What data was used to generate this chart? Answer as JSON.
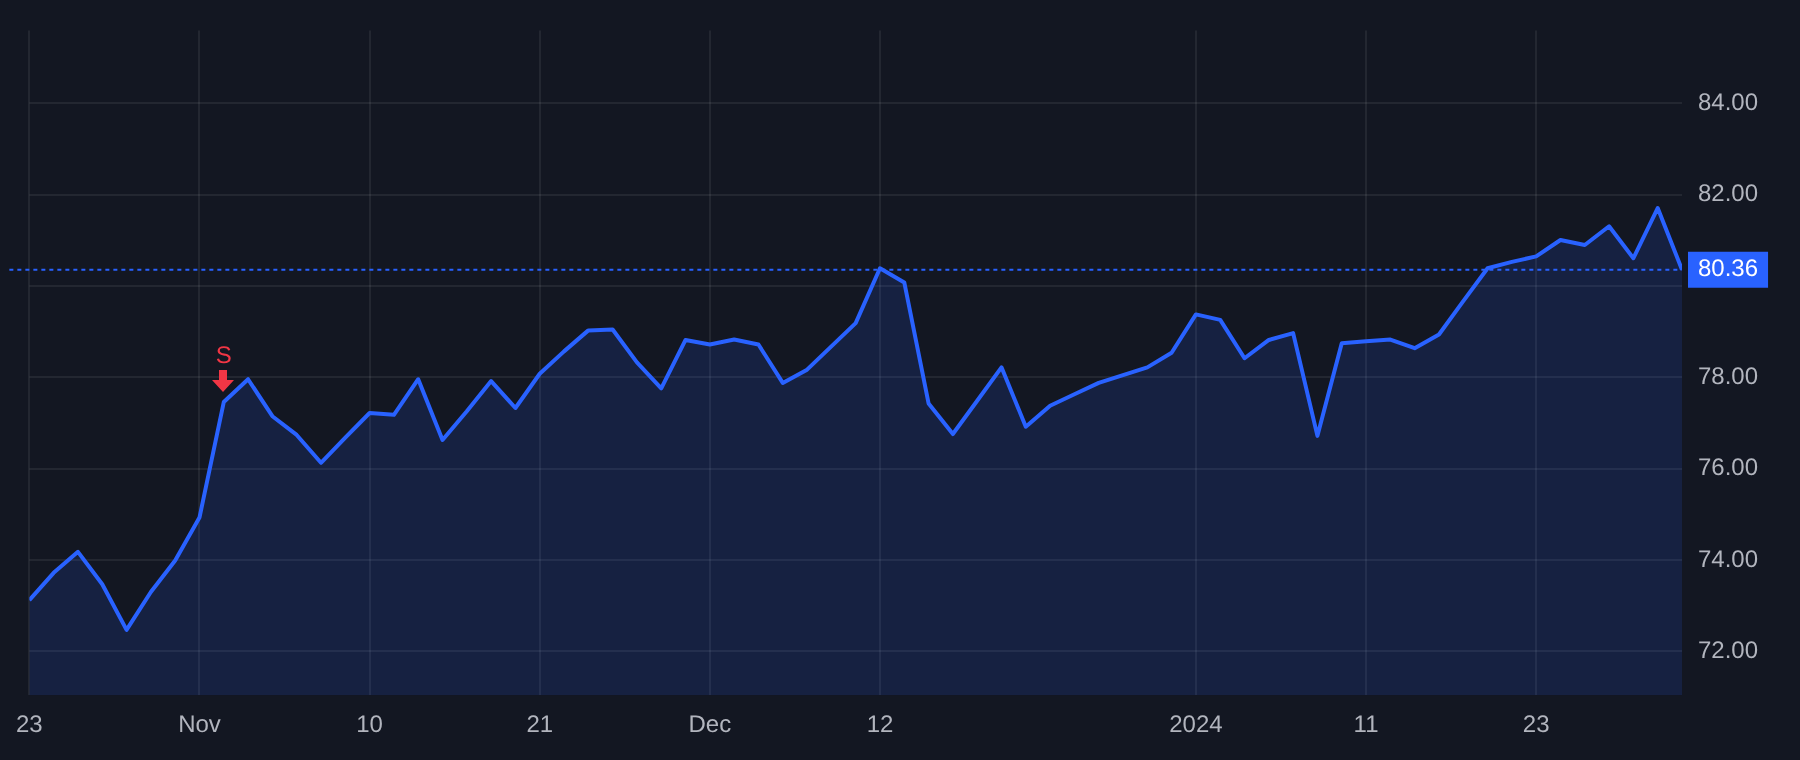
{
  "chart_data": {
    "type": "area",
    "color": "#2962ff",
    "categories": [
      "23",
      null,
      null,
      null,
      null,
      null,
      null,
      "Nov",
      null,
      null,
      null,
      null,
      null,
      null,
      "10",
      null,
      null,
      null,
      null,
      null,
      null,
      "21",
      null,
      null,
      null,
      null,
      null,
      null,
      "Dec",
      null,
      null,
      null,
      null,
      null,
      null,
      "12",
      null,
      null,
      null,
      null,
      null,
      null,
      null,
      null,
      null,
      null,
      null,
      null,
      "2024",
      null,
      null,
      null,
      null,
      null,
      null,
      "11",
      null,
      null,
      null,
      null,
      null,
      null,
      "23",
      null,
      null,
      null,
      null,
      null,
      null
    ],
    "values": [
      73.12,
      73.72,
      74.18,
      73.47,
      72.47,
      73.3,
      73.99,
      74.93,
      77.46,
      77.96,
      77.15,
      76.74,
      76.13,
      76.68,
      77.22,
      77.18,
      77.96,
      76.63,
      77.26,
      77.92,
      77.33,
      78.08,
      78.57,
      79.03,
      79.05,
      78.33,
      77.76,
      78.82,
      78.72,
      78.83,
      78.72,
      77.88,
      78.17,
      78.68,
      79.19,
      80.39,
      80.08,
      77.43,
      76.76,
      77.49,
      78.22,
      76.92,
      77.38,
      77.63,
      77.88,
      78.05,
      78.22,
      78.54,
      79.38,
      79.26,
      78.42,
      78.82,
      78.97,
      76.72,
      78.75,
      78.79,
      78.83,
      78.64,
      78.94,
      79.67,
      80.39,
      80.53,
      80.65,
      81.01,
      80.9,
      81.31,
      80.61,
      81.71,
      80.36
    ],
    "ylim": [
      71.04,
      85.6
    ],
    "yticks": [
      {
        "value": 72,
        "label": "72.00"
      },
      {
        "value": 74,
        "label": "74.00"
      },
      {
        "value": 76,
        "label": "76.00"
      },
      {
        "value": 78,
        "label": "78.00"
      },
      {
        "value": 80,
        "label": null
      },
      {
        "value": 82,
        "label": "82.00"
      },
      {
        "value": 84,
        "label": "84.00"
      }
    ],
    "ref_lines": [
      {
        "axis": "y",
        "value": 80.36,
        "label": "80.36",
        "color": "#2962ff",
        "line_style": "dotted"
      }
    ],
    "annotations": [
      {
        "text": "S",
        "y": 77.46
      }
    ],
    "grid": true,
    "legend": false,
    "marker": "none"
  }
}
